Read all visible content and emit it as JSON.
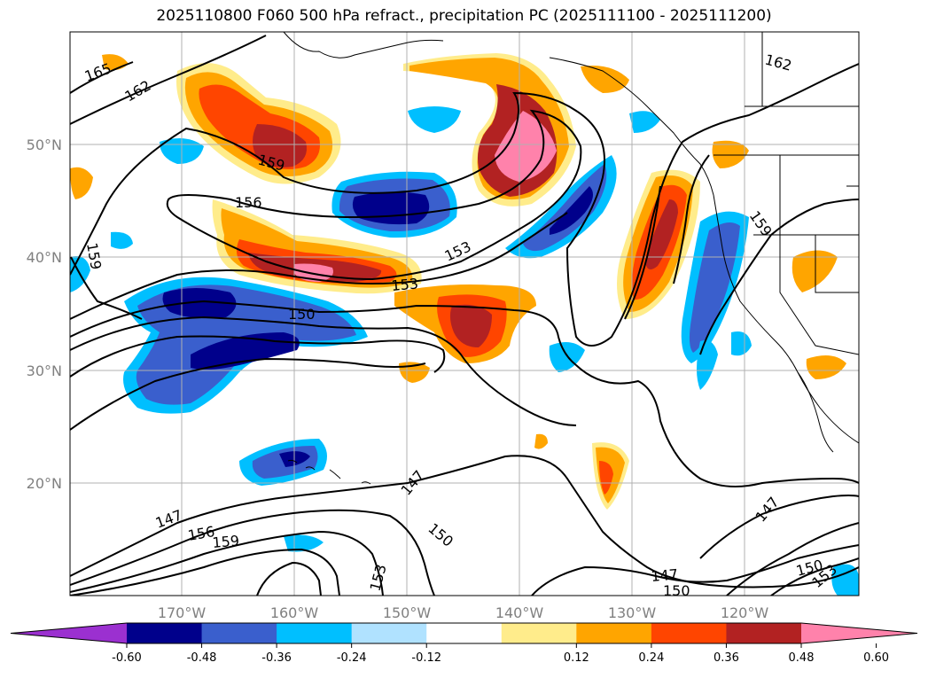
{
  "title": "2025110800 F060 500 hPa refract., precipitation PC (2025111100 - 2025111200)",
  "lat_labels": [
    "50°N",
    "40°N",
    "30°N",
    "20°N"
  ],
  "lon_labels": [
    "170°W",
    "160°W",
    "150°W",
    "140°W",
    "130°W",
    "120°W"
  ],
  "contour_labels": [
    "165",
    "162",
    "159",
    "156",
    "153",
    "153",
    "150",
    "159",
    "147",
    "156",
    "159",
    "147",
    "150",
    "153",
    "147",
    "150",
    "147",
    "150",
    "153",
    "162",
    "159"
  ],
  "colorbar": {
    "ticks": [
      "-0.60",
      "-0.48",
      "-0.36",
      "-0.24",
      "-0.12",
      "0.12",
      "0.24",
      "0.36",
      "0.48",
      "0.60"
    ],
    "colors": [
      "#9b30d0",
      "#00008b",
      "#3a5fcd",
      "#00bfff",
      "#b0e2ff",
      "#ffffff",
      "#ffec8b",
      "#ffa500",
      "#ff4500",
      "#b22222",
      "#ff82ab"
    ]
  }
}
